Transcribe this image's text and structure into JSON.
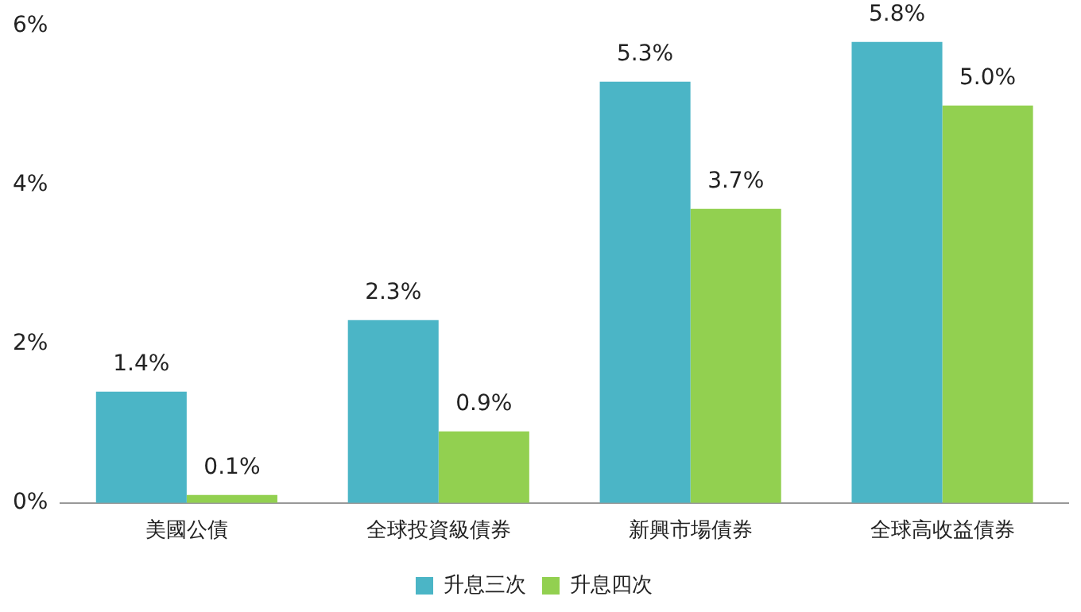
{
  "chart_data": {
    "type": "bar",
    "categories": [
      "美國公債",
      "全球投資級債券",
      "新興市場債券",
      "全球高收益債券"
    ],
    "series": [
      {
        "name": "升息三次",
        "color": "#4bb5c6",
        "values": [
          1.4,
          2.3,
          5.3,
          5.8
        ],
        "value_labels": [
          "1.4%",
          "2.3%",
          "5.3%",
          "5.8%"
        ]
      },
      {
        "name": "升息四次",
        "color": "#92d050",
        "values": [
          0.1,
          0.9,
          3.7,
          5.0
        ],
        "value_labels": [
          "0.1%",
          "0.9%",
          "3.7%",
          "5.0%"
        ]
      }
    ],
    "ylim": [
      0,
      6
    ],
    "yticks": [
      {
        "value": 0,
        "label": "0%"
      },
      {
        "value": 2,
        "label": "2%"
      },
      {
        "value": 4,
        "label": "4%"
      },
      {
        "value": 6,
        "label": "6%"
      }
    ],
    "grid": false,
    "legend": "bottom"
  }
}
